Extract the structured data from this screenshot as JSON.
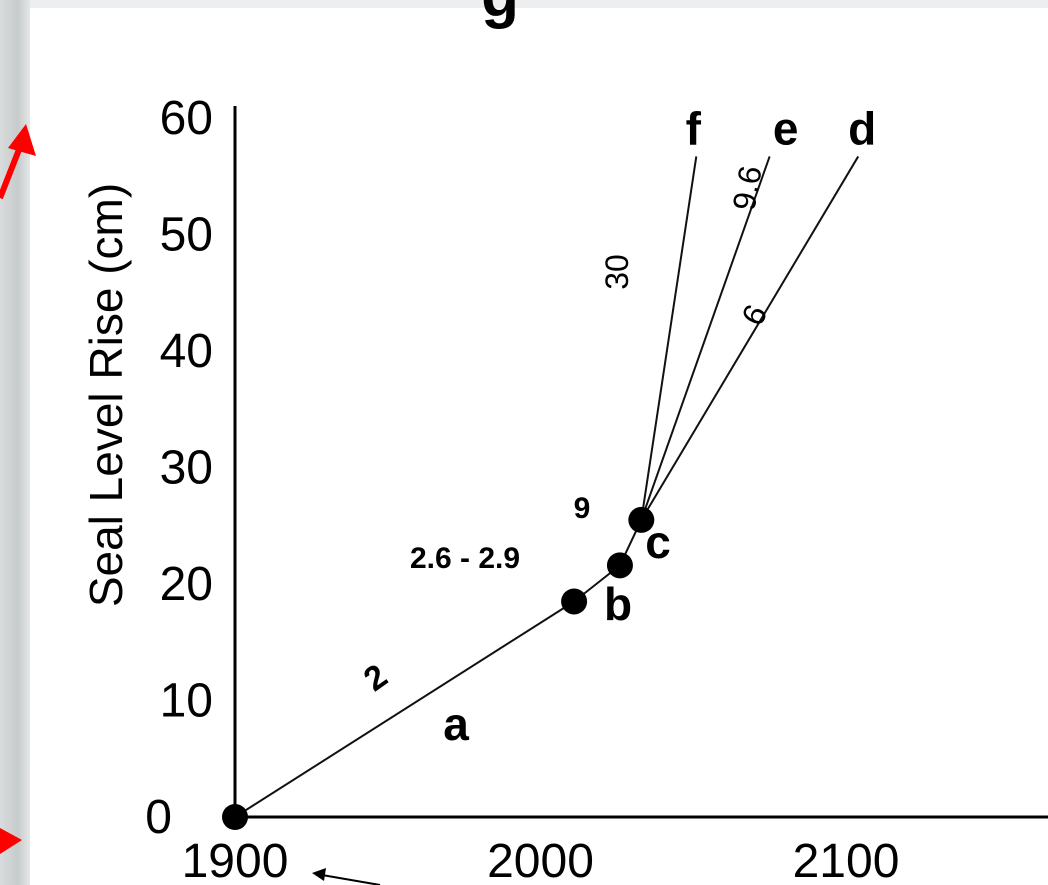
{
  "chart_data": {
    "type": "line",
    "title": "",
    "xlabel": "",
    "ylabel": "Seal Level Rise (cm)",
    "xlim": [
      1900,
      2100
    ],
    "ylim": [
      0,
      60
    ],
    "x_ticks": [
      "1900",
      "2000",
      "2100"
    ],
    "y_ticks": [
      "0",
      "10",
      "20",
      "30",
      "40",
      "50",
      "60"
    ],
    "grid": false,
    "points": [
      {
        "label": "",
        "x": 1900,
        "y": 0
      },
      {
        "label": "b",
        "x": 2011,
        "y": 18.5
      },
      {
        "label": "c",
        "x": 2026,
        "y": 21.6
      },
      {
        "label": "",
        "x": 2033,
        "y": 25.5
      }
    ],
    "segments": [
      {
        "from_x": 1900,
        "from_y": 0,
        "to_x": 2011,
        "to_y": 18.5,
        "rate": "2",
        "label": "a"
      },
      {
        "from_x": 2011,
        "from_y": 18.5,
        "to_x": 2026,
        "to_y": 21.6,
        "rate": "2.6 - 2.9",
        "label": ""
      },
      {
        "from_x": 2026,
        "from_y": 21.6,
        "to_x": 2033,
        "to_y": 25.5,
        "rate": "9",
        "label": ""
      }
    ],
    "projections": [
      {
        "name": "f",
        "rate": "30",
        "from_x": 2033,
        "from_y": 25.5,
        "to_x": 2051,
        "to_y": 56.7
      },
      {
        "name": "e",
        "rate": "9.6",
        "from_x": 2033,
        "from_y": 25.5,
        "to_x": 2075,
        "to_y": 56.7
      },
      {
        "name": "d",
        "rate": "6",
        "from_x": 2033,
        "from_y": 25.5,
        "to_x": 2104,
        "to_y": 56.7
      }
    ]
  },
  "page_title_fragment": "g",
  "colors": {
    "line": "#111111",
    "point": "#000000",
    "arrow": "#ff0000",
    "panel": "#ffffff",
    "background": "#eceeef"
  }
}
